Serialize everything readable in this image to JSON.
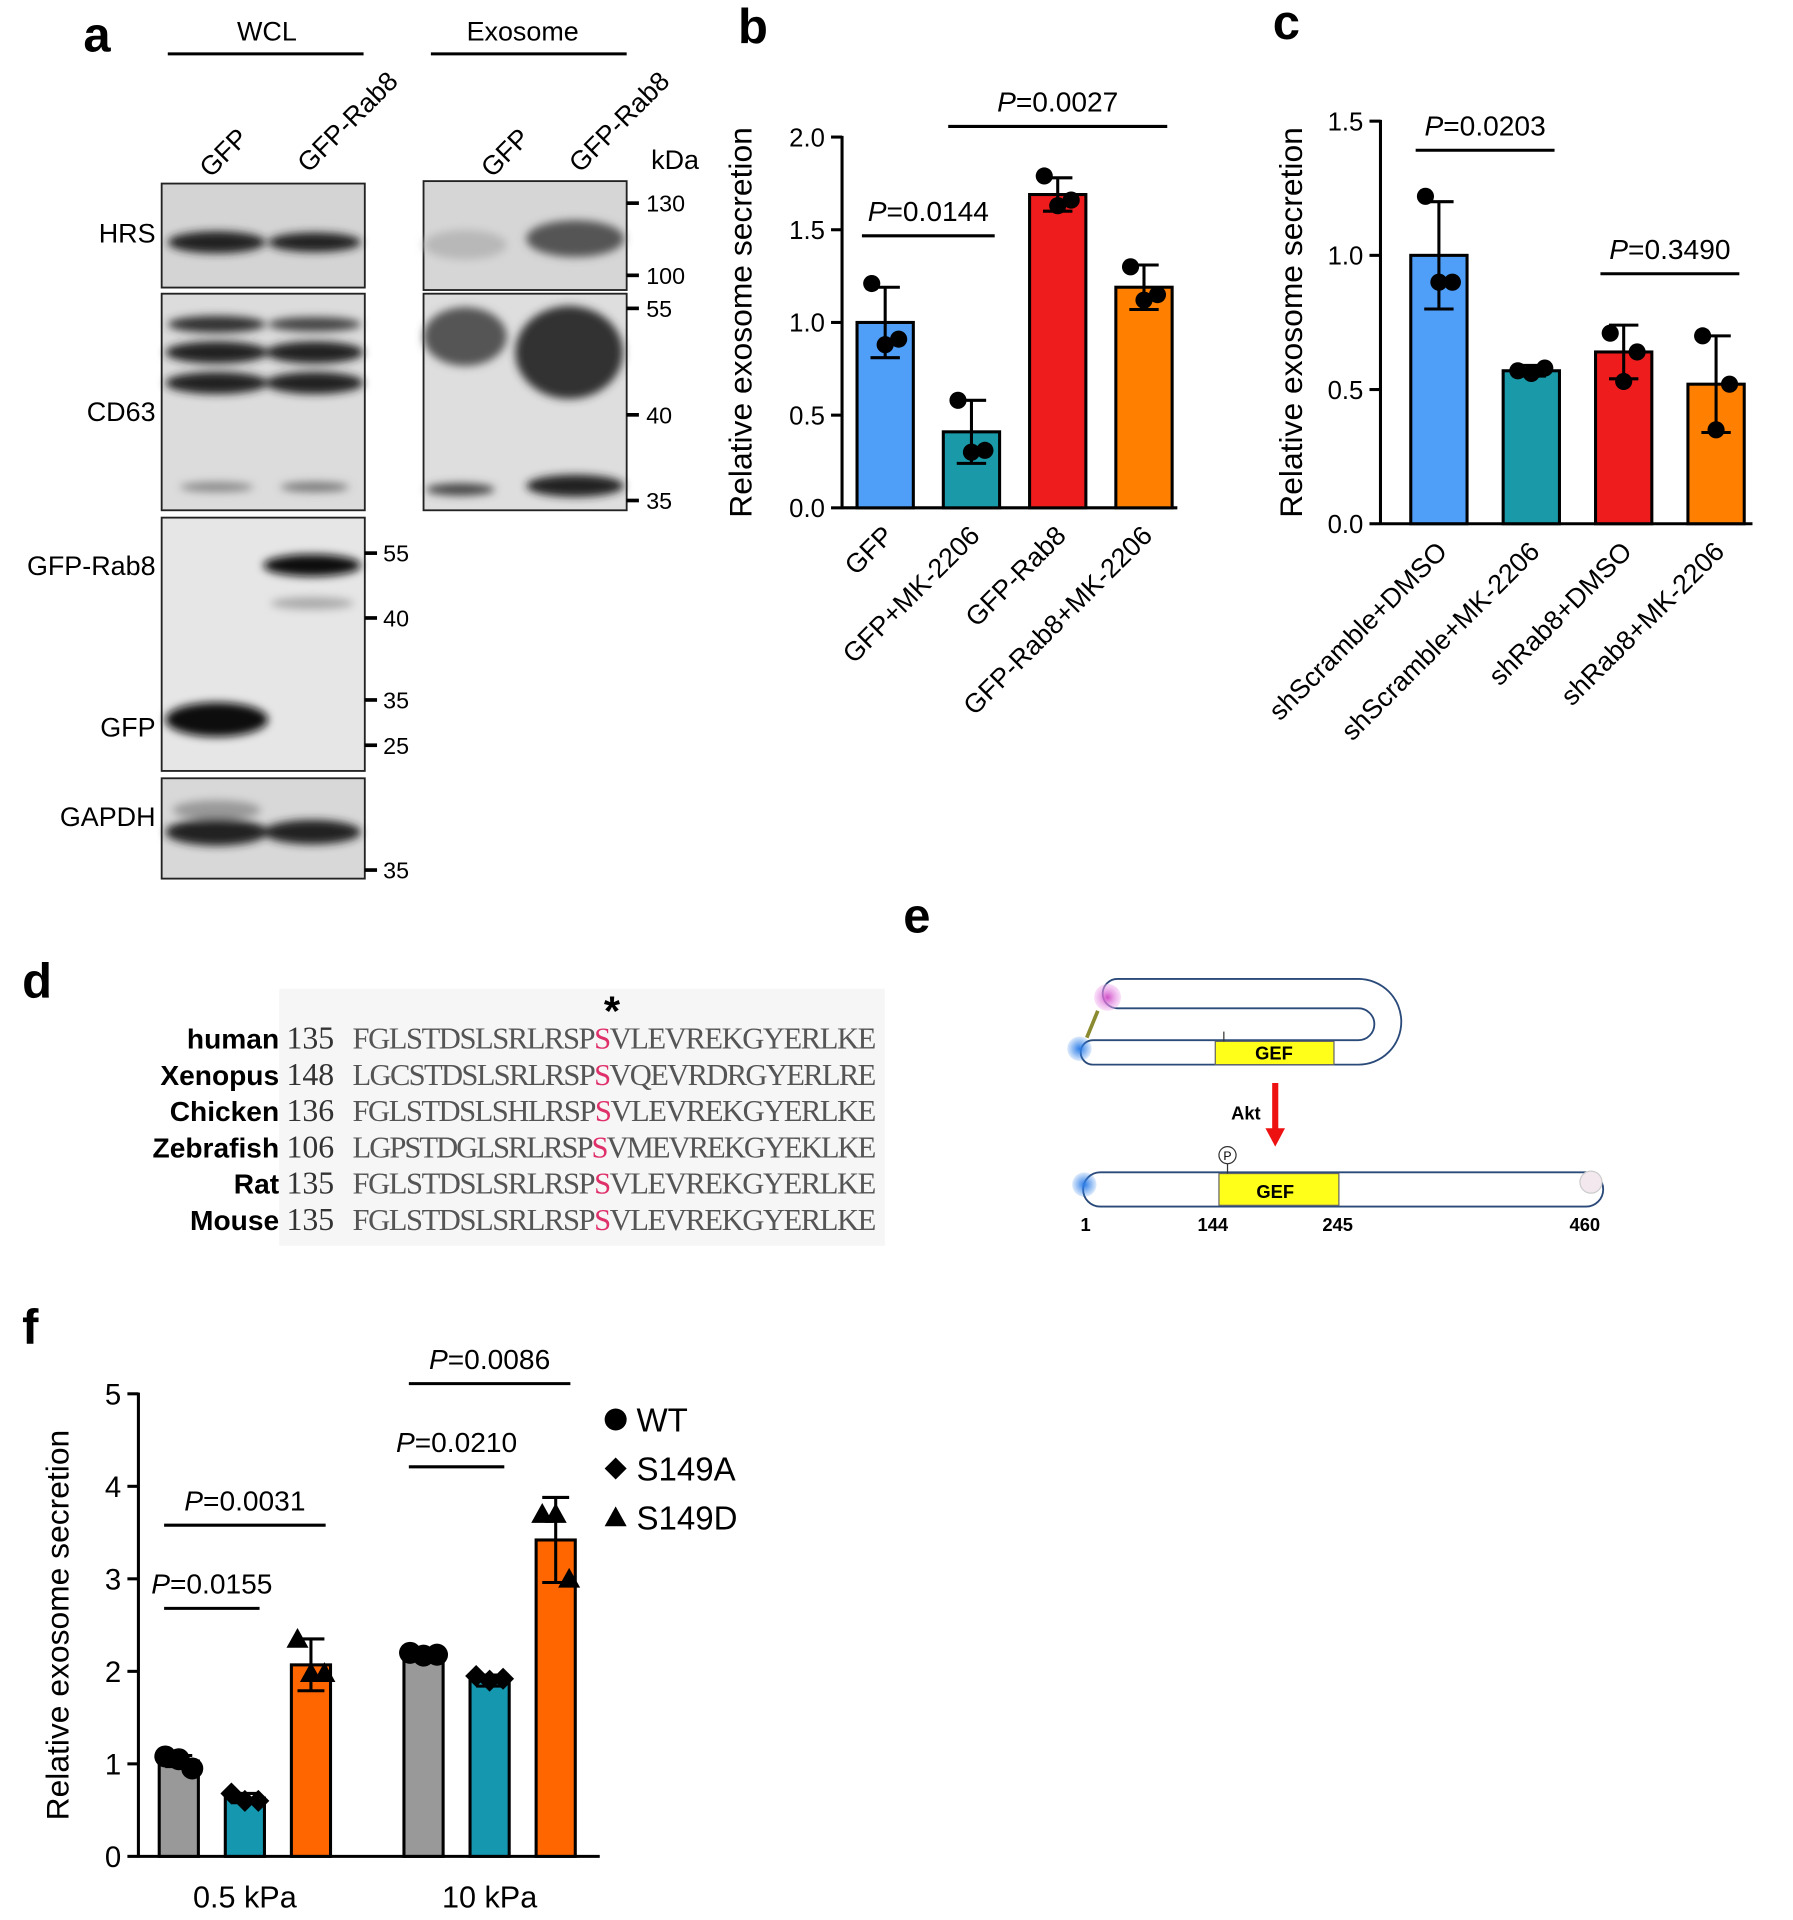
{
  "panel_a": {
    "label": "a",
    "headers": [
      "WCL",
      "Exosome"
    ],
    "lanes": [
      "GFP",
      "GFP-Rab8"
    ],
    "kda": "kDa",
    "blots": [
      "HRS",
      "CD63",
      "GFP-Rab8",
      "GFP",
      "GAPDH"
    ],
    "exosome_markers": [
      "130",
      "100",
      "55",
      "40",
      "35"
    ],
    "wcl_markers": [
      "55",
      "40",
      "35",
      "25",
      "35"
    ]
  },
  "panel_d": {
    "label": "d",
    "marker": "*",
    "rows": [
      {
        "species": "human",
        "start": "135",
        "sequence": "FGLSTDSLSRLRSPSVLEVREKGYERLKE"
      },
      {
        "species": "Xenopus",
        "start": "148",
        "sequence": "LGCSTDSLSRLRSPSVQEVRDRGYERLRE"
      },
      {
        "species": "Chicken",
        "start": "136",
        "sequence": "FGLSTDSLSHLRSPSVLEVREKGYERLKE"
      },
      {
        "species": "Zebrafish",
        "start": "106",
        "sequence": "LGPSTDGLSRLRSPSVMEVREKGYEKLKE"
      },
      {
        "species": "Rat",
        "start": "135",
        "sequence": "FGLSTDSLSRLRSPSVLEVREKGYERLKE"
      },
      {
        "species": "Mouse",
        "start": "135",
        "sequence": "FGLSTDSLSRLRSPSVLEVREKGYERLKE"
      }
    ]
  },
  "panel_e": {
    "label": "e",
    "domain": "GEF",
    "kinase": "Akt",
    "phospho": "P",
    "positions": [
      "1",
      "144",
      "245",
      "460"
    ]
  },
  "chart_data": [
    {
      "type": "bar",
      "label": "b",
      "ylabel": "Relative exosome secretion",
      "categories": [
        "GFP",
        "GFP+MK-2206",
        "GFP-Rab8",
        "GFP-Rab8+MK-2206"
      ],
      "values": [
        1.0,
        0.41,
        1.69,
        1.19
      ],
      "errors": [
        0.19,
        0.17,
        0.09,
        0.12
      ],
      "points": [
        [
          1.21,
          0.88,
          0.91
        ],
        [
          0.58,
          0.3,
          0.31
        ],
        [
          1.79,
          1.63,
          1.66
        ],
        [
          1.3,
          1.12,
          1.15
        ]
      ],
      "colors": [
        "#4f9ef8",
        "#1a99a8",
        "#ee1c1c",
        "#ff8000"
      ],
      "ylim": [
        0,
        2
      ],
      "yticks": [
        {
          "value": 0,
          "label": "0.0"
        },
        {
          "value": 0.5,
          "label": "0.5"
        },
        {
          "value": 1,
          "label": "1.0"
        },
        {
          "value": 1.5,
          "label": "1.5"
        },
        {
          "value": 2,
          "label": "2.0"
        }
      ],
      "comparisons": [
        {
          "from": 0,
          "to": 1,
          "label": "P=0.0144"
        },
        {
          "from": 1,
          "to": 3,
          "label": "P=0.0027"
        }
      ]
    },
    {
      "type": "bar",
      "label": "c",
      "ylabel": "Relative exosome secretion",
      "categories": [
        "shScramble+DMSO",
        "shScramble+MK-2206",
        "shRab8+DMSO",
        "shRab8+MK-2206"
      ],
      "values": [
        1.0,
        0.57,
        0.64,
        0.52
      ],
      "errors": [
        0.2,
        0.02,
        0.1,
        0.18
      ],
      "points": [
        [
          1.22,
          0.9,
          0.9
        ],
        [
          0.57,
          0.56,
          0.58
        ],
        [
          0.71,
          0.53,
          0.64
        ],
        [
          0.7,
          0.35,
          0.52
        ]
      ],
      "colors": [
        "#4f9ef8",
        "#1a99a8",
        "#ee1c1c",
        "#ff8000"
      ],
      "ylim": [
        0,
        1.5
      ],
      "yticks": [
        {
          "value": 0,
          "label": "0.0"
        },
        {
          "value": 0.5,
          "label": "0.5"
        },
        {
          "value": 1,
          "label": "1.0"
        },
        {
          "value": 1.5,
          "label": "1.5"
        }
      ],
      "comparisons": [
        {
          "from": 0,
          "to": 1,
          "label": "P=0.0203"
        },
        {
          "from": 2,
          "to": 3,
          "label": "P=0.3490"
        }
      ]
    },
    {
      "type": "grouped_bar",
      "label": "f",
      "ylabel": "Relative exosome secretion",
      "categories": [
        "0.5 kPa",
        "10 kPa"
      ],
      "series": [
        {
          "name": "WT",
          "color": "#999999",
          "marker": "circle",
          "values": [
            1.03,
            2.18
          ],
          "errors": [
            0.06,
            0.04
          ],
          "points": [
            [
              1.08,
              1.05,
              0.95
            ],
            [
              2.2,
              2.17,
              2.18
            ]
          ]
        },
        {
          "name": "S149A",
          "color": "#1597b0",
          "marker": "diamond",
          "values": [
            0.63,
            1.9
          ],
          "errors": [
            0.05,
            0.06
          ],
          "points": [
            [
              0.68,
              0.6,
              0.6
            ],
            [
              1.95,
              1.9,
              1.92
            ]
          ]
        },
        {
          "name": "S149D",
          "color": "#ff6600",
          "marker": "triangle",
          "values": [
            2.07,
            3.42
          ],
          "errors": [
            0.28,
            0.46
          ],
          "points": [
            [
              2.35,
              1.98,
              1.98
            ],
            [
              3.7,
              3.7,
              3.0
            ]
          ]
        }
      ],
      "ylim": [
        0,
        5
      ],
      "yticks": [
        0,
        1,
        2,
        3,
        4,
        5
      ],
      "comparisons": [
        {
          "group": 0,
          "from": 0,
          "to": 2,
          "label": "P=0.0031"
        },
        {
          "group": 0,
          "from": 0,
          "to": 1,
          "label": "P=0.0155"
        },
        {
          "group": 1,
          "from": 0,
          "to": 2,
          "label": "P=0.0086"
        },
        {
          "group": 1,
          "from": 0,
          "to": 1,
          "label": "P=0.0210"
        }
      ]
    }
  ]
}
